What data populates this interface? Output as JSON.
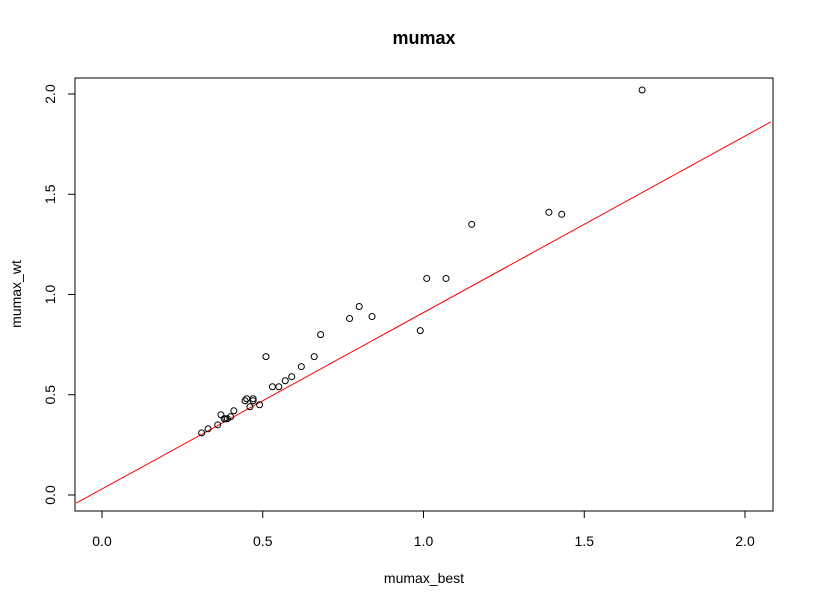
{
  "chart_data": {
    "type": "scatter",
    "title": "mumax",
    "xlabel": "mumax_best",
    "ylabel": "mumax_wt",
    "xlim": [
      -0.08,
      2.08
    ],
    "ylim": [
      -0.08,
      2.08
    ],
    "xticks": [
      "0.0",
      "0.5",
      "1.0",
      "1.5",
      "2.0"
    ],
    "yticks": [
      "0.0",
      "0.5",
      "1.0",
      "1.5",
      "2.0"
    ],
    "grid": false,
    "point_color": "#000000",
    "line_color": "#ff0000",
    "fit_line": {
      "intercept": 0.03,
      "slope": 0.88
    },
    "points": [
      {
        "x": 0.31,
        "y": 0.31
      },
      {
        "x": 0.33,
        "y": 0.33
      },
      {
        "x": 0.36,
        "y": 0.35
      },
      {
        "x": 0.37,
        "y": 0.4
      },
      {
        "x": 0.38,
        "y": 0.38
      },
      {
        "x": 0.385,
        "y": 0.38
      },
      {
        "x": 0.39,
        "y": 0.38
      },
      {
        "x": 0.4,
        "y": 0.39
      },
      {
        "x": 0.41,
        "y": 0.42
      },
      {
        "x": 0.445,
        "y": 0.47
      },
      {
        "x": 0.45,
        "y": 0.48
      },
      {
        "x": 0.46,
        "y": 0.44
      },
      {
        "x": 0.47,
        "y": 0.47
      },
      {
        "x": 0.47,
        "y": 0.48
      },
      {
        "x": 0.49,
        "y": 0.45
      },
      {
        "x": 0.51,
        "y": 0.69
      },
      {
        "x": 0.53,
        "y": 0.54
      },
      {
        "x": 0.55,
        "y": 0.54
      },
      {
        "x": 0.57,
        "y": 0.57
      },
      {
        "x": 0.59,
        "y": 0.59
      },
      {
        "x": 0.62,
        "y": 0.64
      },
      {
        "x": 0.66,
        "y": 0.69
      },
      {
        "x": 0.68,
        "y": 0.8
      },
      {
        "x": 0.77,
        "y": 0.88
      },
      {
        "x": 0.8,
        "y": 0.94
      },
      {
        "x": 0.84,
        "y": 0.89
      },
      {
        "x": 0.99,
        "y": 0.82
      },
      {
        "x": 1.01,
        "y": 1.08
      },
      {
        "x": 1.07,
        "y": 1.08
      },
      {
        "x": 1.15,
        "y": 1.35
      },
      {
        "x": 1.39,
        "y": 1.41
      },
      {
        "x": 1.43,
        "y": 1.4
      },
      {
        "x": 1.68,
        "y": 2.02
      }
    ]
  }
}
